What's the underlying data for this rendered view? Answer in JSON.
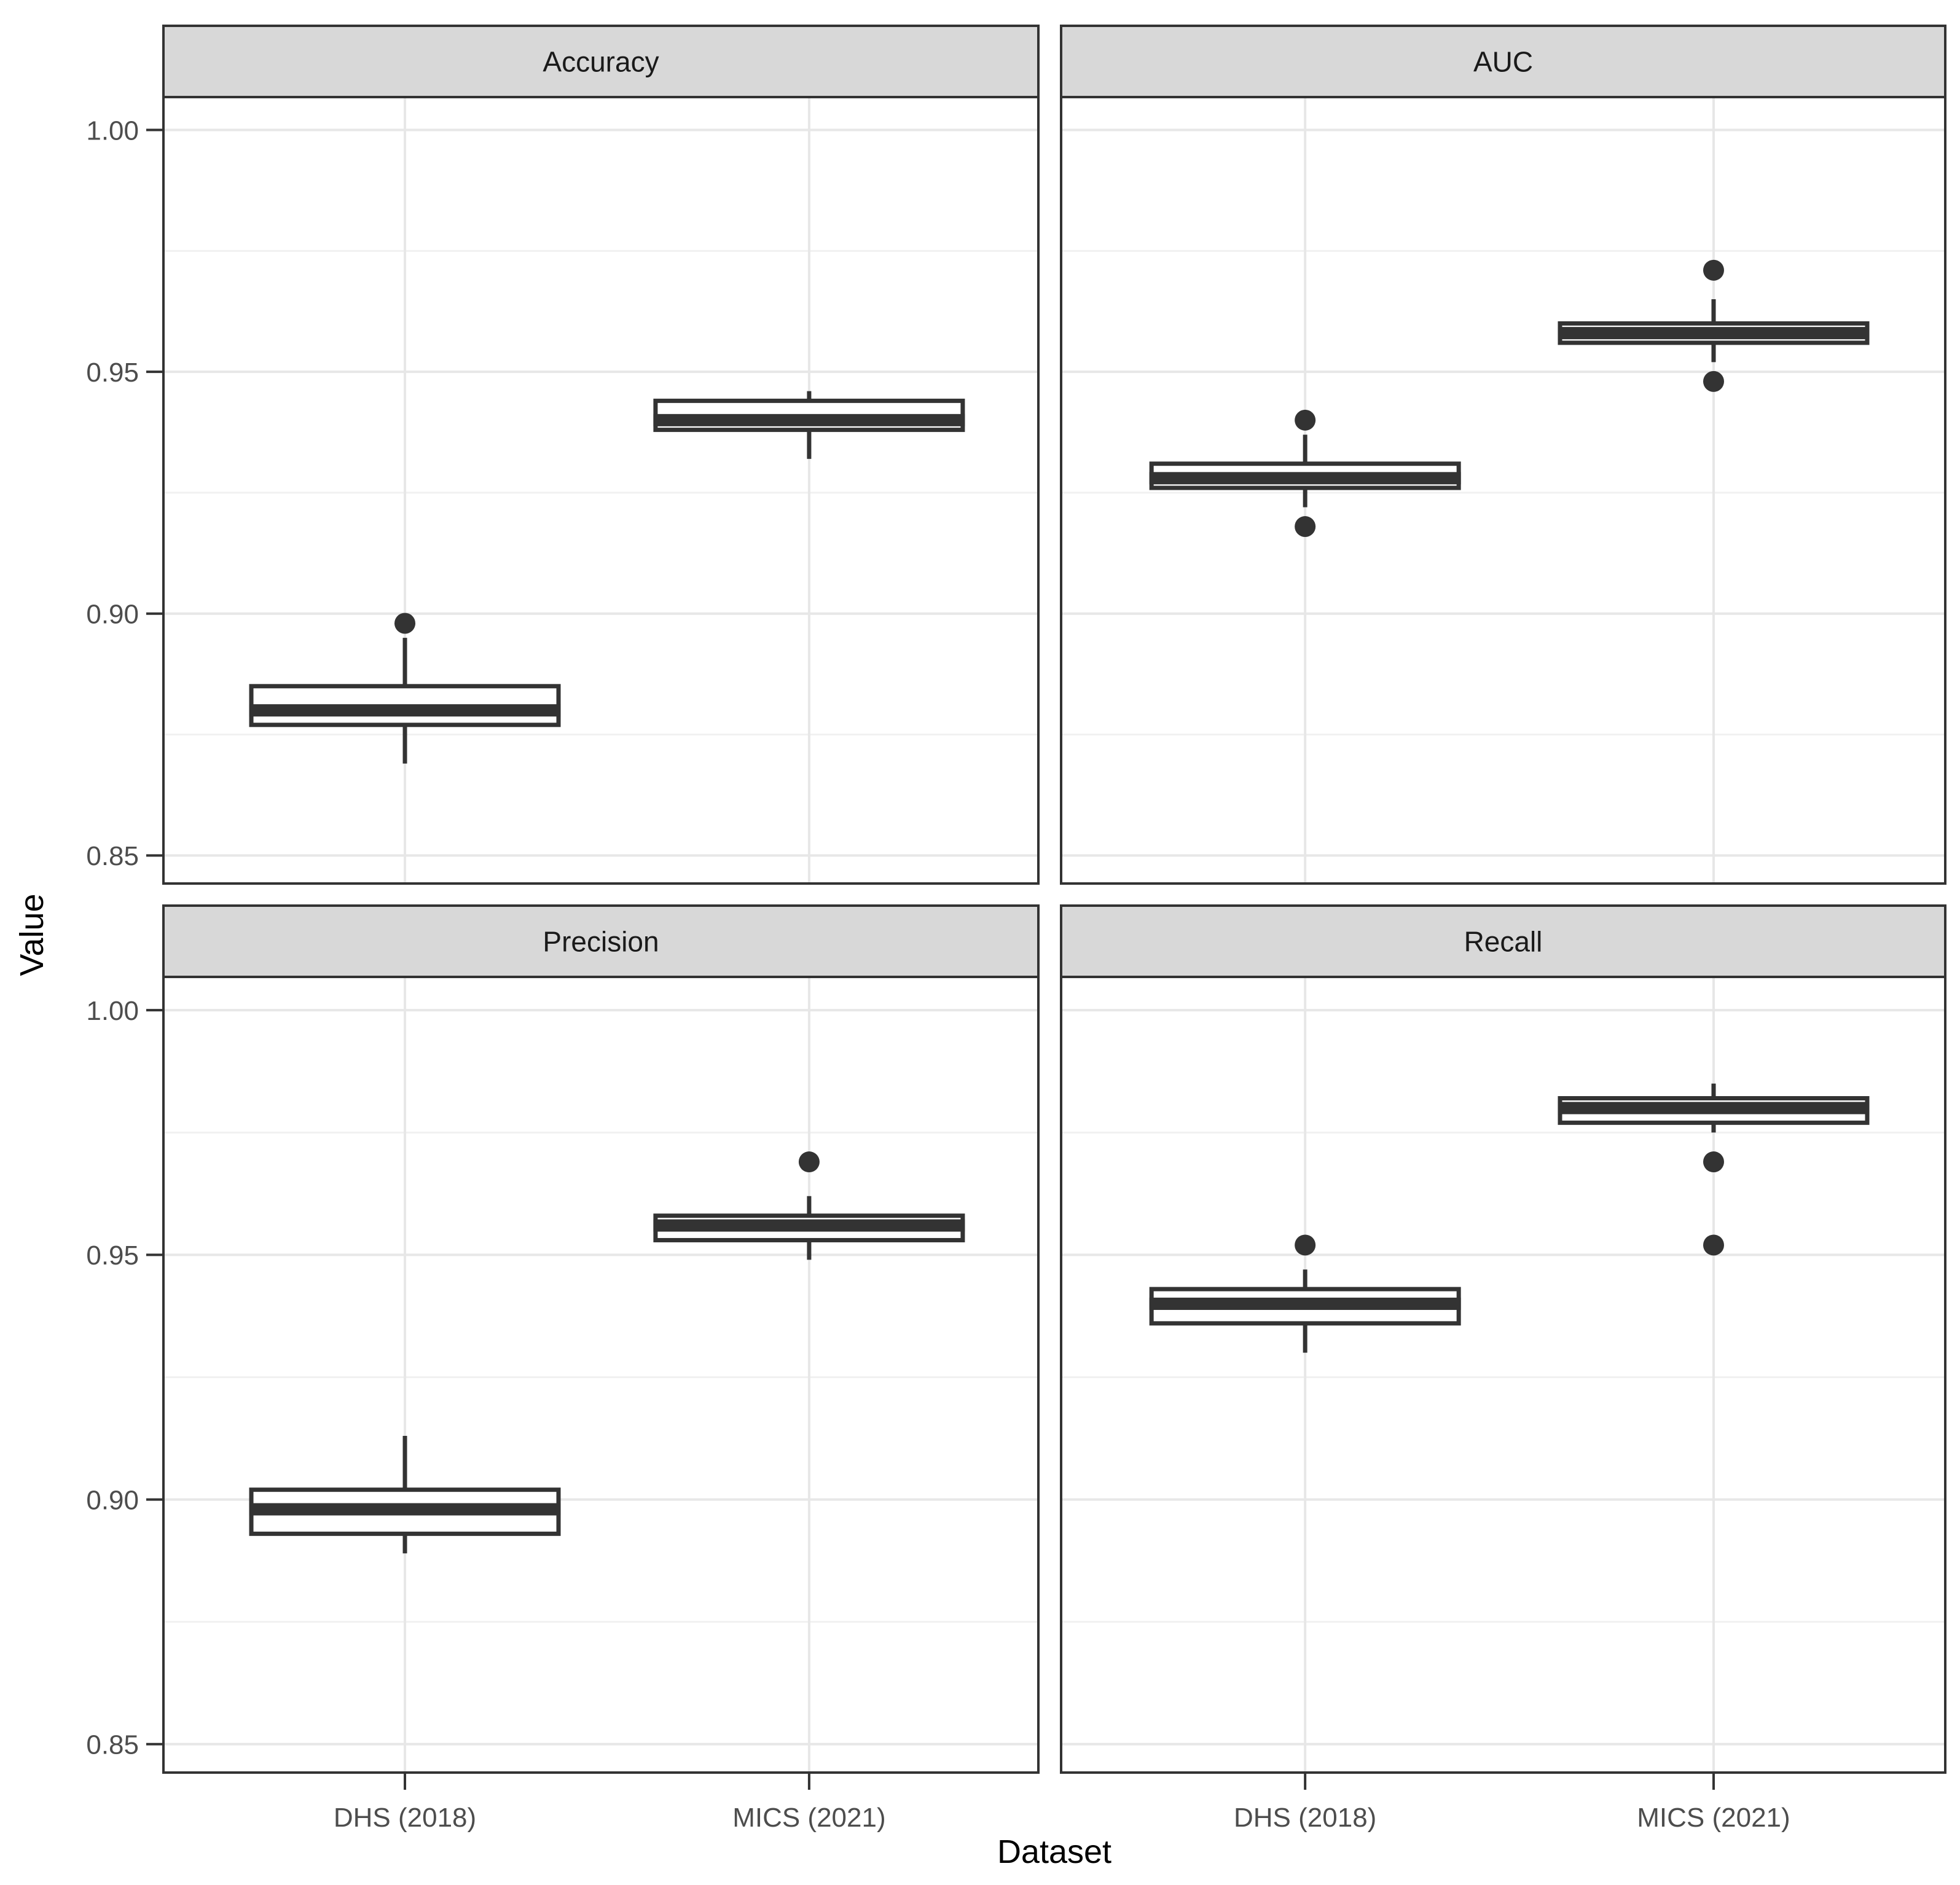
{
  "figure": {
    "background": "#ffffff",
    "y_axis_title": "Value",
    "x_axis_title": "Dataset"
  },
  "colors": {
    "box_stroke": "#333333",
    "box_fill": "#ffffff",
    "median_fill": "#333333",
    "outlier_fill": "#333333",
    "panel_border": "#333333",
    "strip_fill": "#d8d8d8",
    "strip_border": "#333333",
    "strip_text": "#1a1a1a",
    "grid_major": "#e7e7e7",
    "grid_minor": "#f1f1f1",
    "tick_mark": "#333333",
    "tick_label": "#4d4d4d",
    "axis_title": "#000000"
  },
  "chart_data": {
    "type": "boxplot",
    "layout_hint": "2x2 facet grid, shared axes, grid on, no legend",
    "title": "",
    "xlabel": "Dataset",
    "ylabel": "Value",
    "categories": [
      "DHS (2018)",
      "MICS (2021)"
    ],
    "y_ticks": [
      {
        "value": 1.0,
        "label": "1.00"
      },
      {
        "value": 0.95,
        "label": "0.95"
      },
      {
        "value": 0.9,
        "label": "0.90"
      },
      {
        "value": 0.85,
        "label": "0.85"
      }
    ],
    "y_minor_gridlines": [
      0.975,
      0.925,
      0.875
    ],
    "ylim": [
      0.8442,
      1.0068
    ],
    "facets": [
      {
        "label": "Accuracy",
        "boxes": [
          {
            "category": "DHS (2018)",
            "whisker_low": 0.869,
            "q1": 0.877,
            "median": 0.88,
            "q3": 0.885,
            "whisker_high": 0.895,
            "outliers": [
              0.898
            ]
          },
          {
            "category": "MICS (2021)",
            "whisker_low": 0.932,
            "q1": 0.938,
            "median": 0.94,
            "q3": 0.944,
            "whisker_high": 0.946,
            "outliers": []
          }
        ]
      },
      {
        "label": "AUC",
        "boxes": [
          {
            "category": "DHS (2018)",
            "whisker_low": 0.922,
            "q1": 0.926,
            "median": 0.928,
            "q3": 0.931,
            "whisker_high": 0.937,
            "outliers": [
              0.94,
              0.918
            ]
          },
          {
            "category": "MICS (2021)",
            "whisker_low": 0.952,
            "q1": 0.956,
            "median": 0.958,
            "q3": 0.96,
            "whisker_high": 0.965,
            "outliers": [
              0.971,
              0.948
            ]
          }
        ]
      },
      {
        "label": "Precision",
        "boxes": [
          {
            "category": "DHS (2018)",
            "whisker_low": 0.889,
            "q1": 0.893,
            "median": 0.898,
            "q3": 0.902,
            "whisker_high": 0.913,
            "outliers": []
          },
          {
            "category": "MICS (2021)",
            "whisker_low": 0.949,
            "q1": 0.953,
            "median": 0.956,
            "q3": 0.958,
            "whisker_high": 0.962,
            "outliers": [
              0.969
            ]
          }
        ]
      },
      {
        "label": "Recall",
        "boxes": [
          {
            "category": "DHS (2018)",
            "whisker_low": 0.93,
            "q1": 0.936,
            "median": 0.94,
            "q3": 0.943,
            "whisker_high": 0.947,
            "outliers": [
              0.952
            ]
          },
          {
            "category": "MICS (2021)",
            "whisker_low": 0.975,
            "q1": 0.977,
            "median": 0.98,
            "q3": 0.982,
            "whisker_high": 0.985,
            "outliers": [
              0.969,
              0.952
            ]
          }
        ]
      }
    ]
  }
}
